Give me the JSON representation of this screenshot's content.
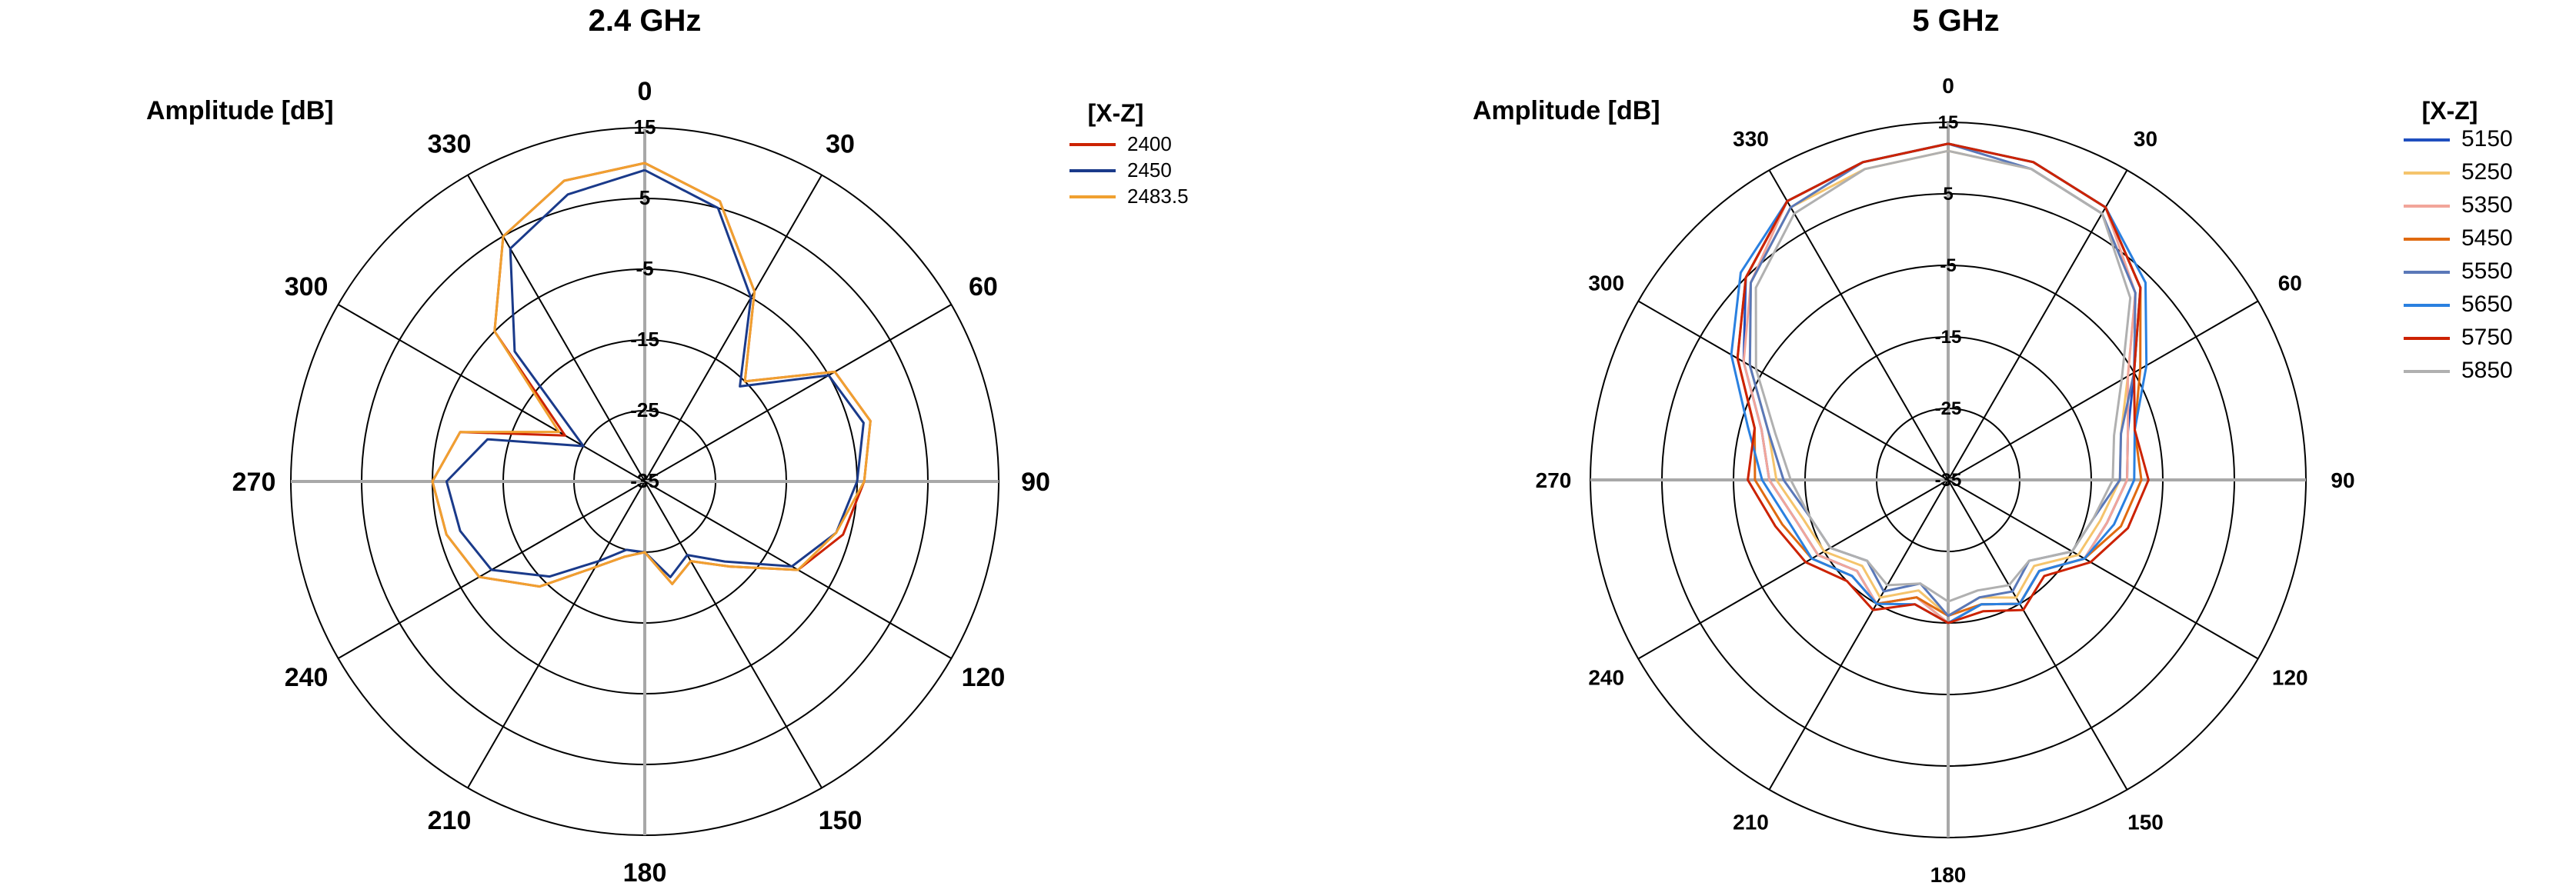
{
  "chart_data": [
    {
      "type": "polar-line",
      "title": "2.4 GHz",
      "radial_label": "Amplitude [dB]",
      "legend_title": "[X-Z]",
      "legend_position": "right",
      "radial_range": [
        -35,
        15
      ],
      "radial_ticks": [
        "15",
        "5",
        "-5",
        "-15",
        "-25",
        "-35"
      ],
      "angle_ticks": [
        "0",
        "30",
        "60",
        "90",
        "120",
        "150",
        "180",
        "210",
        "240",
        "270",
        "300",
        "330"
      ],
      "angles": [
        0,
        15,
        30,
        45,
        60,
        75,
        90,
        105,
        120,
        135,
        150,
        165,
        180,
        195,
        210,
        225,
        240,
        255,
        270,
        285,
        300,
        315,
        330,
        345
      ],
      "series": [
        {
          "name": "2400",
          "color": "#cc2200",
          "values": [
            10,
            6,
            -4,
            -15,
            -4,
            -2,
            -4,
            -6,
            -10,
            -18,
            -22,
            -20,
            -25,
            -24,
            -21,
            -14,
            -8,
            -6,
            -5,
            -8,
            -22,
            -5,
            5,
            9
          ]
        },
        {
          "name": "2450",
          "color": "#1a3a8a",
          "values": [
            9,
            5,
            -5,
            -16,
            -5,
            -3,
            -5,
            -7,
            -11,
            -19,
            -23,
            -21,
            -25,
            -25,
            -22,
            -16,
            -10,
            -8,
            -7,
            -12,
            -25,
            -9,
            3,
            7
          ]
        },
        {
          "name": "2483.5",
          "color": "#f0a030",
          "values": [
            10,
            6,
            -4,
            -15,
            -4,
            -2,
            -4,
            -7,
            -10,
            -18,
            -22,
            -20,
            -25,
            -24,
            -21,
            -14,
            -8,
            -6,
            -5,
            -8,
            -21,
            -5,
            5,
            9
          ]
        }
      ]
    },
    {
      "type": "polar-line",
      "title": "5 GHz",
      "radial_label": "Amplitude [dB]",
      "legend_title": "[X-Z]",
      "legend_position": "right",
      "radial_range": [
        -35,
        15
      ],
      "radial_ticks": [
        "15",
        "5",
        "-5",
        "-15",
        "-25",
        "-35"
      ],
      "angle_ticks": [
        "0",
        "30",
        "60",
        "90",
        "120",
        "150",
        "180",
        "210",
        "240",
        "270",
        "300",
        "330"
      ],
      "angles": [
        0,
        15,
        30,
        45,
        60,
        75,
        90,
        105,
        120,
        135,
        150,
        165,
        180,
        195,
        210,
        225,
        240,
        255,
        270,
        285,
        300,
        315,
        330,
        345
      ],
      "series": [
        {
          "name": "5150",
          "color": "#1f4fbf",
          "values": [
            12,
            11,
            9,
            3,
            -5,
            -9,
            -10,
            -12,
            -13,
            -17,
            -15,
            -17,
            -15,
            -18,
            -15,
            -17,
            -14,
            -13,
            -10,
            -8,
            -2,
            5,
            10,
            11
          ]
        },
        {
          "name": "5250",
          "color": "#f5c46c",
          "values": [
            11,
            10,
            8,
            2,
            -6,
            -10,
            -11,
            -13,
            -14,
            -18,
            -16,
            -18,
            -16,
            -19,
            -16,
            -18,
            -15,
            -14,
            -11,
            -9,
            -3,
            4,
            9,
            10
          ]
        },
        {
          "name": "5350",
          "color": "#f2a59a",
          "values": [
            12,
            11,
            9,
            2,
            -6,
            -9,
            -10,
            -12,
            -13,
            -17,
            -15,
            -17,
            -15,
            -18,
            -15,
            -17,
            -14,
            -13,
            -10,
            -8,
            -2,
            4,
            10,
            11
          ]
        },
        {
          "name": "5450",
          "color": "#e06a10",
          "values": [
            12,
            11,
            9,
            3,
            -4,
            -8,
            -8,
            -10,
            -13,
            -17,
            -15,
            -17,
            -16,
            -18,
            -15,
            -16,
            -13,
            -11,
            -8,
            -7,
            -1,
            5,
            10,
            11
          ]
        },
        {
          "name": "5550",
          "color": "#5a78b8",
          "values": [
            12,
            10,
            8,
            2,
            -5,
            -10,
            -11,
            -14,
            -15,
            -19,
            -17,
            -18,
            -16,
            -20,
            -17,
            -19,
            -16,
            -15,
            -12,
            -9,
            -3,
            4,
            9,
            11
          ]
        },
        {
          "name": "5650",
          "color": "#2a80e0",
          "values": [
            12,
            11,
            9,
            4,
            -3,
            -8,
            -9,
            -11,
            -13,
            -17,
            -15,
            -17,
            -15,
            -17,
            -15,
            -16,
            -13,
            -12,
            -9,
            -6,
            0,
            6,
            10,
            11
          ]
        },
        {
          "name": "5750",
          "color": "#cc2200",
          "values": [
            12,
            11,
            9,
            3,
            -5,
            -8,
            -7,
            -9,
            -12,
            -16,
            -14,
            -16,
            -15,
            -17,
            -14,
            -15,
            -12,
            -10,
            -7,
            -7,
            -1,
            5,
            10,
            11
          ]
        },
        {
          "name": "5850",
          "color": "#b0b0b0",
          "values": [
            11,
            10,
            8,
            1,
            -7,
            -11,
            -12,
            -14,
            -15,
            -19,
            -18,
            -19,
            -18,
            -20,
            -18,
            -19,
            -16,
            -15,
            -13,
            -10,
            -4,
            3,
            8,
            10
          ]
        }
      ]
    }
  ]
}
